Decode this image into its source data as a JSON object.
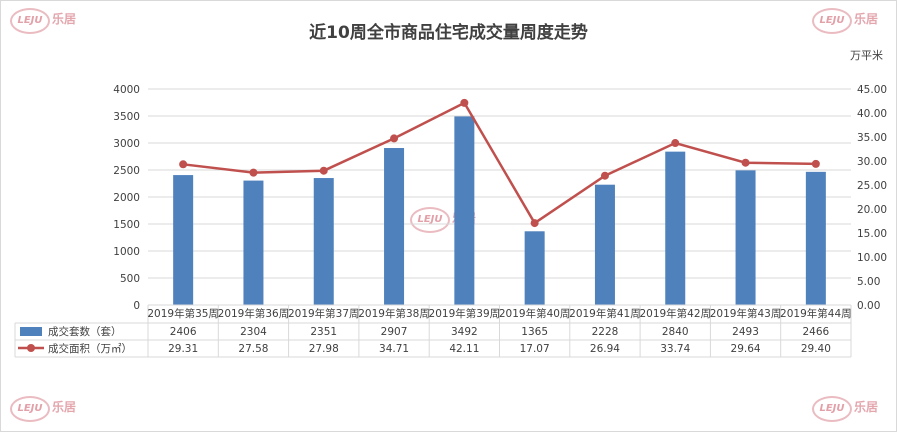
{
  "chart_data": {
    "type": "bar+line",
    "title": "近10周全市商品住宅成交量周度走势",
    "right_unit": "万平米",
    "categories": [
      "2019年第35周",
      "2019年第36周",
      "2019年第37周",
      "2019年第38周",
      "2019年第39周",
      "2019年第40周",
      "2019年第41周",
      "2019年第42周",
      "2019年第43周",
      "2019年第44周"
    ],
    "series": [
      {
        "name": "成交套数（套）",
        "type": "bar",
        "axis": "left",
        "color": "#4f81bd",
        "values": [
          2406,
          2304,
          2351,
          2907,
          3492,
          1365,
          2228,
          2840,
          2493,
          2466
        ],
        "labels": [
          "2406",
          "2304",
          "2351",
          "2907",
          "3492",
          "1365",
          "2228",
          "2840",
          "2493",
          "2466"
        ]
      },
      {
        "name": "成交面积（万㎡）",
        "type": "line",
        "axis": "right",
        "color": "#c0504d",
        "values": [
          29.31,
          27.58,
          27.98,
          34.71,
          42.11,
          17.07,
          26.94,
          33.74,
          29.64,
          29.4
        ],
        "labels": [
          "29.31",
          "27.58",
          "27.98",
          "34.71",
          "42.11",
          "17.07",
          "26.94",
          "33.74",
          "29.64",
          "29.40"
        ]
      }
    ],
    "y_left": {
      "min": 0,
      "max": 4000,
      "step": 500,
      "ticks": [
        "0",
        "500",
        "1000",
        "1500",
        "2000",
        "2500",
        "3000",
        "3500",
        "4000"
      ]
    },
    "y_right": {
      "min": 0,
      "max": 45,
      "step": 5,
      "ticks": [
        "0.00",
        "5.00",
        "10.00",
        "15.00",
        "20.00",
        "25.00",
        "30.00",
        "35.00",
        "40.00",
        "45.00"
      ]
    },
    "grid": true,
    "legend": "data-table-below"
  },
  "watermark": {
    "logo": "LEJU",
    "text": "乐居"
  }
}
